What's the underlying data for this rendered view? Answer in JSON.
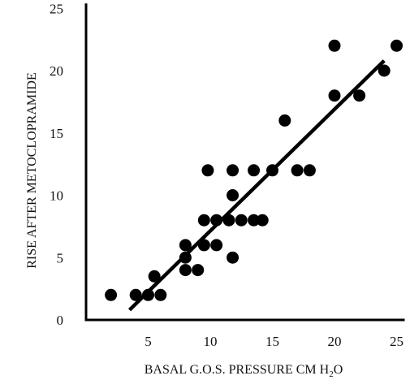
{
  "chart_data": {
    "type": "scatter",
    "xlabel": "BASAL G.O.S. PRESSURE  CM H",
    "xlabel_subscript": "2",
    "xlabel_suffix": "O",
    "ylabel": "RISE AFTER METOCLOPRAMIDE",
    "xlim": [
      0,
      25
    ],
    "ylim": [
      0,
      25
    ],
    "x_ticks": [
      5,
      10,
      15,
      20,
      25
    ],
    "y_ticks": [
      0,
      5,
      10,
      15,
      20,
      25
    ],
    "grid": false,
    "legend": "none",
    "marker_color": "#000000",
    "points": [
      [
        2,
        2
      ],
      [
        4,
        2
      ],
      [
        5,
        2
      ],
      [
        5.5,
        3.5
      ],
      [
        6,
        2
      ],
      [
        8,
        6
      ],
      [
        8,
        5
      ],
      [
        8,
        4
      ],
      [
        9,
        4
      ],
      [
        9.5,
        6
      ],
      [
        9.5,
        8
      ],
      [
        9.8,
        12
      ],
      [
        10.5,
        6
      ],
      [
        10.5,
        8
      ],
      [
        11.5,
        8
      ],
      [
        11.8,
        10
      ],
      [
        11.8,
        12
      ],
      [
        11.8,
        5
      ],
      [
        12.5,
        8
      ],
      [
        13.5,
        8
      ],
      [
        13.5,
        12
      ],
      [
        14.2,
        8
      ],
      [
        15,
        12
      ],
      [
        16,
        16
      ],
      [
        17,
        12
      ],
      [
        18,
        12
      ],
      [
        20,
        22
      ],
      [
        20,
        18
      ],
      [
        22,
        18
      ],
      [
        24,
        20
      ],
      [
        25,
        22
      ]
    ],
    "regression_line": {
      "x": [
        3.5,
        24
      ],
      "y": [
        0.8,
        20.8
      ]
    }
  }
}
